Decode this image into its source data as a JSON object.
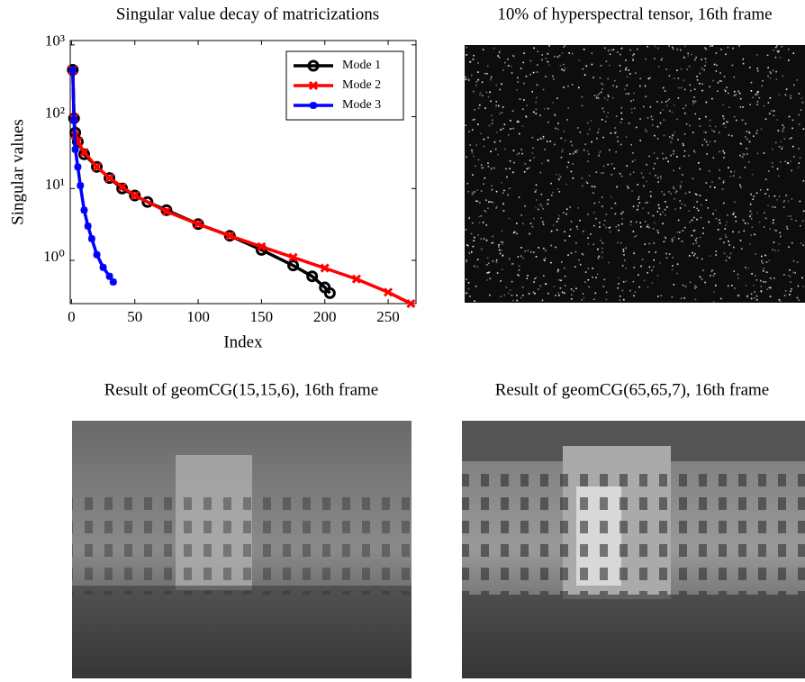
{
  "chart_data": {
    "type": "line",
    "title": "Singular value decay of matricizations",
    "xlabel": "Index",
    "ylabel": "Singular values",
    "log_y": true,
    "legend": "upper right",
    "xlim": [
      -1,
      272
    ],
    "ylim": [
      0.25,
      1150
    ],
    "xticks": [
      0,
      50,
      100,
      150,
      200,
      250
    ],
    "yticks": [
      {
        "value": 1,
        "label": "10⁰"
      },
      {
        "value": 10,
        "label": "10¹"
      },
      {
        "value": 100,
        "label": "10²"
      },
      {
        "value": 1000,
        "label": "10³"
      }
    ],
    "series": [
      {
        "name": "Mode 1",
        "color": "#000000",
        "marker": "circle",
        "x": [
          1,
          2,
          3,
          5,
          10,
          20,
          30,
          40,
          50,
          60,
          75,
          100,
          125,
          150,
          175,
          190,
          200,
          204
        ],
        "values": [
          450,
          95,
          60,
          45,
          30,
          20,
          14,
          10,
          8,
          6.5,
          5,
          3.2,
          2.2,
          1.4,
          0.85,
          0.6,
          0.42,
          0.35
        ]
      },
      {
        "name": "Mode 2",
        "color": "#ff0000",
        "marker": "x",
        "x": [
          1,
          2,
          3,
          5,
          10,
          20,
          30,
          40,
          50,
          75,
          100,
          125,
          150,
          175,
          200,
          225,
          250,
          268
        ],
        "values": [
          450,
          95,
          55,
          45,
          32,
          20,
          14,
          10.5,
          8,
          4.8,
          3.2,
          2.2,
          1.55,
          1.1,
          0.78,
          0.55,
          0.36,
          0.25
        ]
      },
      {
        "name": "Mode 3",
        "color": "#0000ff",
        "marker": "star",
        "x": [
          1,
          2,
          3,
          5,
          7,
          10,
          13,
          16,
          20,
          25,
          30,
          33
        ],
        "values": [
          450,
          90,
          35,
          20,
          11,
          5,
          3,
          2,
          1.2,
          0.8,
          0.6,
          0.5
        ]
      }
    ]
  },
  "panels": [
    {
      "title": "10% of hyperspectral tensor, 16th frame"
    },
    {
      "title": "Result of geomCG(15,15,6), 16th frame"
    },
    {
      "title": "Result of geomCG(65,65,7), 16th frame"
    }
  ]
}
